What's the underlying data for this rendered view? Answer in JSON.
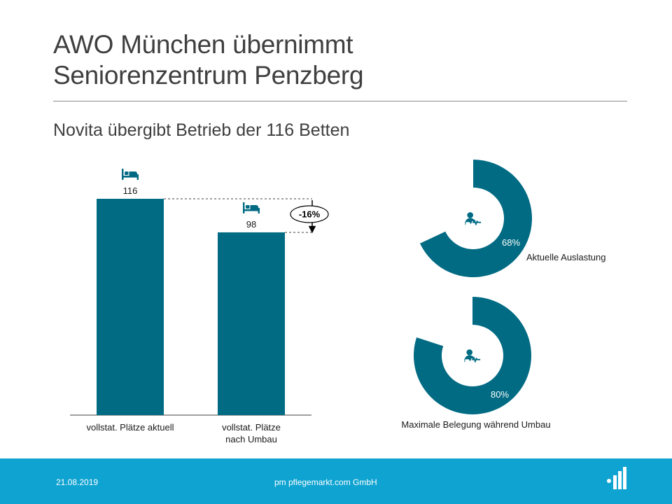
{
  "slide": {
    "title_line1": "AWO München übernimmt",
    "title_line2": "Seniorenzentrum Penzberg",
    "subtitle": "Novita übergibt Betrieb der 116 Betten"
  },
  "colors": {
    "accent": "#006b83",
    "footer": "#0ea3d1",
    "text": "#404040"
  },
  "bar_icon": "bed-icon",
  "donut_icon": "heartbeat-person-icon",
  "chart_data": [
    {
      "type": "bar",
      "categories": [
        [
          "vollstat.  Plätze aktuell"
        ],
        [
          "vollstat.  Plätze",
          "nach Umbau"
        ]
      ],
      "values": [
        116,
        98
      ],
      "data_labels": [
        "116",
        "98"
      ],
      "change_label": "-16%",
      "ylim": [
        0,
        116
      ],
      "color": "#006b83"
    },
    {
      "type": "pie",
      "variant": "donut",
      "value": 68,
      "value_label": "68%",
      "label": "Aktuelle Auslastung",
      "color": "#006b83"
    },
    {
      "type": "pie",
      "variant": "donut",
      "value": 80,
      "value_label": "80%",
      "label": "Maximale Belegung während Umbau",
      "color": "#006b83"
    }
  ],
  "footer": {
    "date": "21.08.2019",
    "company": "pm pflegemarkt.com GmbH",
    "logo_icon": "pflegemarkt-logo-icon"
  }
}
